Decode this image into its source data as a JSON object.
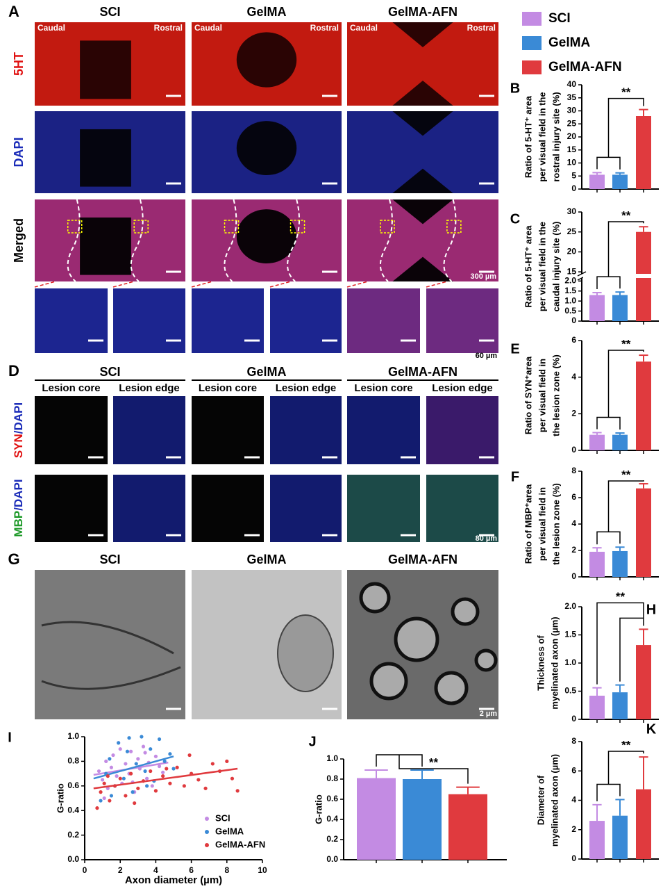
{
  "figure": {
    "legend": [
      {
        "name": "SCI",
        "color": "#c38be3"
      },
      {
        "name": "GelMA",
        "color": "#3a8ad6"
      },
      {
        "name": "GelMA-AFN",
        "color": "#e03a3e"
      }
    ],
    "A": {
      "label": "A",
      "columns": [
        "SCI",
        "GelMA",
        "GelMA-AFN"
      ],
      "rows": [
        "5HT",
        "DAPI",
        "Merged"
      ],
      "caudal": "Caudal",
      "rostral": "Rostral",
      "scale": "300 µm",
      "zoom_scale": "60 µm"
    },
    "D": {
      "label": "D",
      "columns": [
        "SCI",
        "GelMA",
        "GelMA-AFN"
      ],
      "subcolumns": [
        "Lesion core",
        "Lesion edge"
      ],
      "rows": [
        [
          "SYN",
          "/DAPI"
        ],
        [
          "MBP",
          "/DAPI"
        ]
      ],
      "scale": "80 µm"
    },
    "G": {
      "label": "G",
      "columns": [
        "SCI",
        "GelMA",
        "GelMA-AFN"
      ],
      "scale": "2 µm"
    }
  },
  "chart_data": [
    {
      "type": "bar",
      "label": "B",
      "ylabel": [
        "Ratio of 5-HT⁺ area",
        "per visual field in the",
        "rostral injury site (%)"
      ],
      "categories": [
        null,
        null,
        null
      ],
      "values": [
        5.5,
        5.5,
        28
      ],
      "errors": [
        0.8,
        0.7,
        2.5
      ],
      "colors": [
        "#c38be3",
        "#3a8ad6",
        "#e03a3e"
      ],
      "ylim": [
        0,
        40
      ],
      "yticks": [
        0,
        5,
        10,
        15,
        20,
        25,
        30,
        35,
        40
      ],
      "annotation": "**",
      "bracket": "grouped"
    },
    {
      "type": "bar",
      "label": "C",
      "ylabel": [
        "Ratio of 5-HT⁺ area",
        "per visual field in the",
        "caudal injury site (%)"
      ],
      "categories": [
        null,
        null,
        null
      ],
      "values": [
        1.3,
        1.3,
        25
      ],
      "errors": [
        0.12,
        0.15,
        1.3
      ],
      "colors": [
        "#c38be3",
        "#3a8ad6",
        "#e03a3e"
      ],
      "ylim": [
        0,
        30
      ],
      "ybreak": [
        2.15,
        14.5
      ],
      "yticks": [
        0,
        0.5,
        {
          "value": 1,
          "label": "1.0"
        },
        1.5,
        {
          "value": 2,
          "label": "2.0"
        },
        15,
        20,
        25,
        30
      ],
      "annotation": "**",
      "bracket": "grouped"
    },
    {
      "type": "bar",
      "label": "E",
      "ylabel": [
        "Ratio of SYN⁺area",
        "per visual field in",
        "the lesion zone (%)"
      ],
      "categories": [
        null,
        null,
        null
      ],
      "values": [
        0.85,
        0.85,
        4.85
      ],
      "errors": [
        0.12,
        0.1,
        0.35
      ],
      "colors": [
        "#c38be3",
        "#3a8ad6",
        "#e03a3e"
      ],
      "ylim": [
        0,
        6
      ],
      "yticks": [
        0,
        2,
        4,
        6
      ],
      "annotation": "**",
      "bracket": "grouped"
    },
    {
      "type": "bar",
      "label": "F",
      "ylabel": [
        "Ratio of MBP⁺area",
        "per visual field in",
        "the lesion zone (%)"
      ],
      "categories": [
        null,
        null,
        null
      ],
      "values": [
        1.9,
        1.95,
        6.7
      ],
      "errors": [
        0.3,
        0.3,
        0.35
      ],
      "colors": [
        "#c38be3",
        "#3a8ad6",
        "#e03a3e"
      ],
      "ylim": [
        0,
        8
      ],
      "yticks": [
        0,
        2,
        4,
        6,
        8
      ],
      "annotation": "**",
      "bracket": "grouped"
    },
    {
      "type": "bar",
      "label": "H",
      "ylabel": [
        "Thickness of",
        "myelinated axon (µm)"
      ],
      "categories": [
        null,
        null,
        null
      ],
      "values": [
        0.42,
        0.48,
        1.32
      ],
      "errors": [
        0.14,
        0.13,
        0.28
      ],
      "colors": [
        "#c38be3",
        "#3a8ad6",
        "#e03a3e"
      ],
      "ylim": [
        0,
        2
      ],
      "yticks": [
        0,
        0.5,
        {
          "value": 1,
          "label": "1.0"
        },
        1.5,
        {
          "value": 2,
          "label": "2.0"
        }
      ],
      "annotation": "**",
      "bracket": "pairwise"
    },
    {
      "type": "scatter",
      "label": "I",
      "xlabel": "Axon diameter (µm)",
      "ylabel": [
        "G-ratio"
      ],
      "xlim": [
        0,
        10
      ],
      "xticks": [
        0,
        2,
        4,
        6,
        8,
        10
      ],
      "ylim": [
        0,
        1
      ],
      "yticks": [
        {
          "value": 0,
          "label": "0.0"
        },
        0.2,
        0.4,
        0.6,
        0.8,
        {
          "value": 1,
          "label": "1.0"
        }
      ],
      "series": [
        {
          "name": "SCI",
          "color": "#c38be3",
          "x": [
            0.8,
            1.0,
            1.2,
            1.3,
            1.5,
            1.6,
            1.8,
            2.0,
            2.1,
            2.3,
            2.5,
            2.6,
            2.8,
            3.0,
            3.1,
            3.3,
            3.5,
            3.6,
            3.8,
            4.0,
            4.2,
            4.4,
            1.1,
            1.9,
            2.7,
            3.4
          ],
          "values": [
            0.72,
            0.65,
            0.8,
            0.58,
            0.75,
            0.85,
            0.68,
            0.9,
            0.62,
            0.78,
            0.7,
            0.88,
            0.55,
            0.82,
            0.74,
            0.92,
            0.66,
            0.79,
            0.6,
            0.84,
            0.76,
            0.71,
            0.5,
            0.95,
            0.63,
            0.87
          ],
          "fit_x": [
            0.5,
            4.7
          ],
          "fit_y": [
            0.69,
            0.79
          ]
        },
        {
          "name": "GelMA",
          "color": "#3a8ad6",
          "x": [
            0.9,
            1.2,
            1.4,
            1.7,
            1.9,
            2.2,
            2.4,
            2.7,
            2.9,
            3.2,
            3.4,
            3.7,
            3.9,
            4.2,
            4.5,
            4.8,
            5.0,
            1.5,
            2.5,
            3.5
          ],
          "values": [
            0.48,
            0.7,
            0.82,
            0.6,
            0.95,
            0.66,
            0.88,
            0.55,
            0.78,
            1.0,
            0.72,
            0.9,
            0.64,
            0.98,
            0.8,
            0.86,
            0.74,
            0.52,
            0.99,
            0.6
          ],
          "fit_x": [
            0.5,
            5.0
          ],
          "fit_y": [
            0.66,
            0.84
          ]
        },
        {
          "name": "GelMA-AFN",
          "color": "#e03a3e",
          "x": [
            0.7,
            0.9,
            1.1,
            1.4,
            1.7,
            2.0,
            2.3,
            2.6,
            3.0,
            3.3,
            3.7,
            4.0,
            4.4,
            4.8,
            5.2,
            5.6,
            6.0,
            6.4,
            6.8,
            7.2,
            7.6,
            8.0,
            8.3,
            8.6,
            1.3,
            2.8,
            4.6,
            5.9
          ],
          "values": [
            0.42,
            0.55,
            0.62,
            0.48,
            0.6,
            0.66,
            0.52,
            0.7,
            0.58,
            0.64,
            0.72,
            0.56,
            0.68,
            0.62,
            0.75,
            0.6,
            0.7,
            0.65,
            0.58,
            0.78,
            0.72,
            0.8,
            0.66,
            0.56,
            0.68,
            0.46,
            0.74,
            0.85
          ],
          "fit_x": [
            0.5,
            8.6
          ],
          "fit_y": [
            0.58,
            0.74
          ]
        }
      ]
    },
    {
      "type": "bar",
      "label": "J",
      "ylabel": [
        "G-ratio"
      ],
      "categories": [
        null,
        null,
        null
      ],
      "values": [
        0.81,
        0.8,
        0.65
      ],
      "errors": [
        0.08,
        0.09,
        0.07
      ],
      "colors": [
        "#c38be3",
        "#3a8ad6",
        "#e03a3e"
      ],
      "ylim": [
        0,
        1
      ],
      "yticks": [
        {
          "value": 0,
          "label": "0.0"
        },
        0.2,
        0.4,
        0.6,
        0.8,
        {
          "value": 1,
          "label": "1.0"
        }
      ],
      "annotation": "**",
      "bracket": "grouped"
    },
    {
      "type": "bar",
      "label": "K",
      "ylabel": [
        "Diameter of",
        "myelinated axon (µm)"
      ],
      "categories": [
        null,
        null,
        null
      ],
      "values": [
        2.6,
        2.95,
        4.75
      ],
      "errors": [
        1.1,
        1.1,
        2.2
      ],
      "colors": [
        "#c38be3",
        "#3a8ad6",
        "#e03a3e"
      ],
      "ylim": [
        0,
        8
      ],
      "yticks": [
        0,
        2,
        4,
        6,
        8
      ],
      "annotation": "**",
      "bracket": "grouped"
    }
  ]
}
